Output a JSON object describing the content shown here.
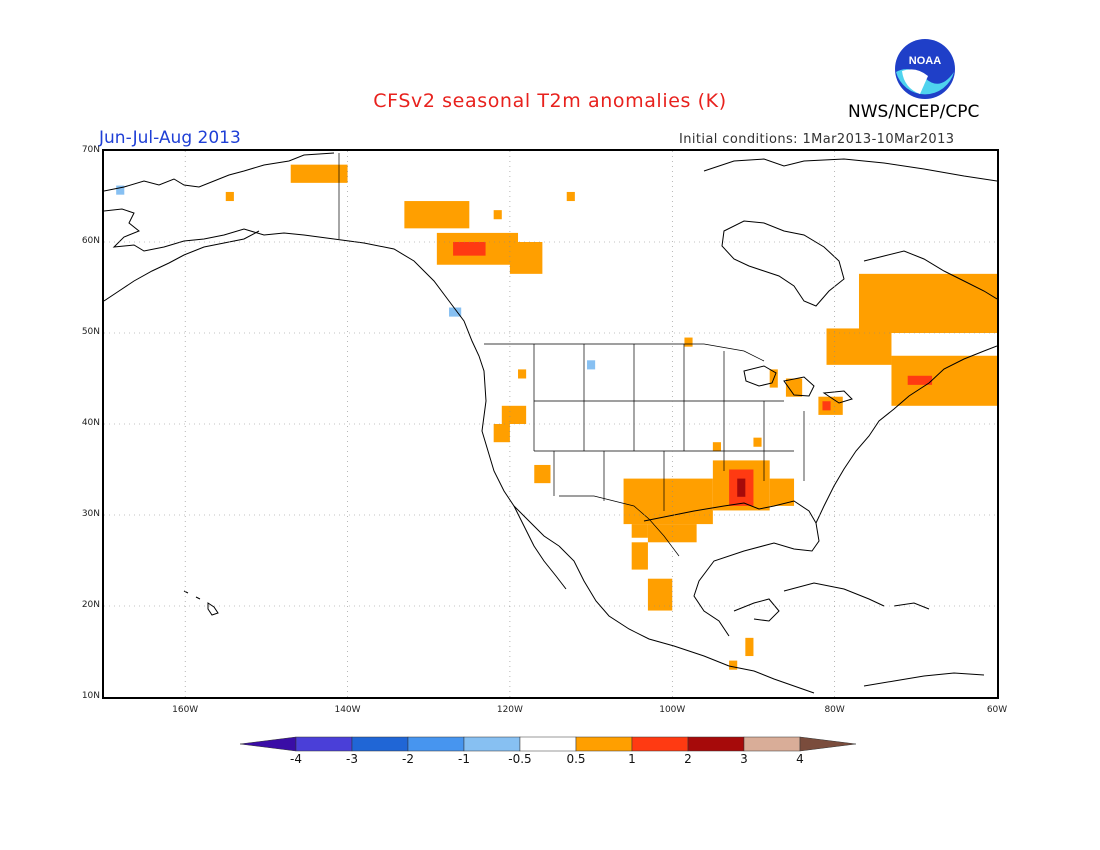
{
  "header": {
    "title": "CFSv2 seasonal T2m anomalies (K)",
    "season": "Jun-Jul-Aug 2013",
    "agency": "NWS/NCEP/CPC",
    "initial_conditions": "Initial conditions: 1Mar2013-10Mar2013",
    "logo_text": "NOAA"
  },
  "map": {
    "lat_labels": [
      "70N",
      "60N",
      "50N",
      "40N",
      "30N",
      "20N",
      "10N"
    ],
    "lon_labels": [
      "160W",
      "140W",
      "120W",
      "100W",
      "80W",
      "60W"
    ],
    "lat_range": [
      10,
      70
    ],
    "lon_range": [
      -170,
      -60
    ],
    "grid": true,
    "anomaly_regions": [
      {
        "lon": [
          -147,
          -140
        ],
        "lat": [
          66.5,
          68.5
        ],
        "value": 0.7
      },
      {
        "lon": [
          -155,
          -154
        ],
        "lat": [
          64.5,
          65.5
        ],
        "value": 0.7
      },
      {
        "lon": [
          -133,
          -125
        ],
        "lat": [
          61.5,
          64.5
        ],
        "value": 0.7
      },
      {
        "lon": [
          -129,
          -119
        ],
        "lat": [
          57.5,
          61
        ],
        "value": 0.8
      },
      {
        "lon": [
          -127,
          -123
        ],
        "lat": [
          58.5,
          60
        ],
        "value": 1.3
      },
      {
        "lon": [
          -120,
          -116
        ],
        "lat": [
          56.5,
          60
        ],
        "value": 0.7
      },
      {
        "lon": [
          -122,
          -121
        ],
        "lat": [
          62.5,
          63.5
        ],
        "value": 0.7
      },
      {
        "lon": [
          -113,
          -112
        ],
        "lat": [
          64.5,
          65.5
        ],
        "value": 0.7
      },
      {
        "lon": [
          -168.5,
          -167.5
        ],
        "lat": [
          65.2,
          66.2
        ],
        "value": -0.7
      },
      {
        "lon": [
          -127.5,
          -126
        ],
        "lat": [
          51.8,
          52.8
        ],
        "value": -0.7
      },
      {
        "lon": [
          -110.5,
          -109.5
        ],
        "lat": [
          46,
          47
        ],
        "value": -0.7
      },
      {
        "lon": [
          -106,
          -95
        ],
        "lat": [
          29,
          34
        ],
        "value": 0.8
      },
      {
        "lon": [
          -103,
          -97
        ],
        "lat": [
          27,
          29
        ],
        "value": 0.8
      },
      {
        "lon": [
          -95,
          -88
        ],
        "lat": [
          30.5,
          36
        ],
        "value": 0.8
      },
      {
        "lon": [
          -93,
          -90
        ],
        "lat": [
          31,
          35
        ],
        "value": 1.3
      },
      {
        "lon": [
          -92,
          -91
        ],
        "lat": [
          32,
          34
        ],
        "value": 2.2
      },
      {
        "lon": [
          -88,
          -85
        ],
        "lat": [
          31,
          34
        ],
        "value": 0.7
      },
      {
        "lon": [
          -117,
          -115
        ],
        "lat": [
          33.5,
          35.5
        ],
        "value": 0.7
      },
      {
        "lon": [
          -121,
          -118
        ],
        "lat": [
          40,
          42
        ],
        "value": 0.7
      },
      {
        "lon": [
          -122,
          -120
        ],
        "lat": [
          38,
          40
        ],
        "value": 0.7
      },
      {
        "lon": [
          -105,
          -103
        ],
        "lat": [
          24,
          27
        ],
        "value": 0.7
      },
      {
        "lon": [
          -103,
          -100
        ],
        "lat": [
          19.5,
          23
        ],
        "value": 0.7
      },
      {
        "lon": [
          -105,
          -103
        ],
        "lat": [
          27.5,
          29
        ],
        "value": 0.7
      },
      {
        "lon": [
          -91,
          -90
        ],
        "lat": [
          14.5,
          16.5
        ],
        "value": 0.7
      },
      {
        "lon": [
          -93,
          -92
        ],
        "lat": [
          13,
          14
        ],
        "value": 0.7
      },
      {
        "lon": [
          -81,
          -73
        ],
        "lat": [
          46.5,
          50.5
        ],
        "value": 0.7
      },
      {
        "lon": [
          -77,
          -60
        ],
        "lat": [
          50,
          56.5
        ],
        "value": 0.8
      },
      {
        "lon": [
          -73,
          -60
        ],
        "lat": [
          42,
          47.5
        ],
        "value": 0.7
      },
      {
        "lon": [
          -71,
          -68
        ],
        "lat": [
          44.3,
          45.3
        ],
        "value": 1.3
      },
      {
        "lon": [
          -86,
          -84
        ],
        "lat": [
          43,
          45
        ],
        "value": 0.7
      },
      {
        "lon": [
          -82,
          -79
        ],
        "lat": [
          41,
          43
        ],
        "value": 0.7
      },
      {
        "lon": [
          -81.5,
          -80.5
        ],
        "lat": [
          41.5,
          42.5
        ],
        "value": 1.3
      },
      {
        "lon": [
          -88,
          -87
        ],
        "lat": [
          44,
          46
        ],
        "value": 0.7
      },
      {
        "lon": [
          -95,
          -94
        ],
        "lat": [
          37,
          38
        ],
        "value": 0.7
      },
      {
        "lon": [
          -90,
          -89
        ],
        "lat": [
          37.5,
          38.5
        ],
        "value": 0.7
      },
      {
        "lon": [
          -98.5,
          -97.5
        ],
        "lat": [
          48.5,
          49.5
        ],
        "value": 0.7
      },
      {
        "lon": [
          -119,
          -118
        ],
        "lat": [
          45,
          46
        ],
        "value": 0.7
      }
    ]
  },
  "colorbar": {
    "labels": [
      "-4",
      "-3",
      "-2",
      "-1",
      "-0.5",
      "0.5",
      "1",
      "2",
      "3",
      "4"
    ],
    "colors": [
      "#3a0da6",
      "#4a3fd8",
      "#2066d6",
      "#4795ef",
      "#87c0f2",
      "#ffffff",
      "#ff9f00",
      "#ff3a12",
      "#a60a0a",
      "#d9ad98",
      "#7a4c3c"
    ],
    "bounds": [
      -4,
      -3,
      -2,
      -1,
      -0.5,
      0.5,
      1,
      2,
      3,
      4
    ]
  }
}
